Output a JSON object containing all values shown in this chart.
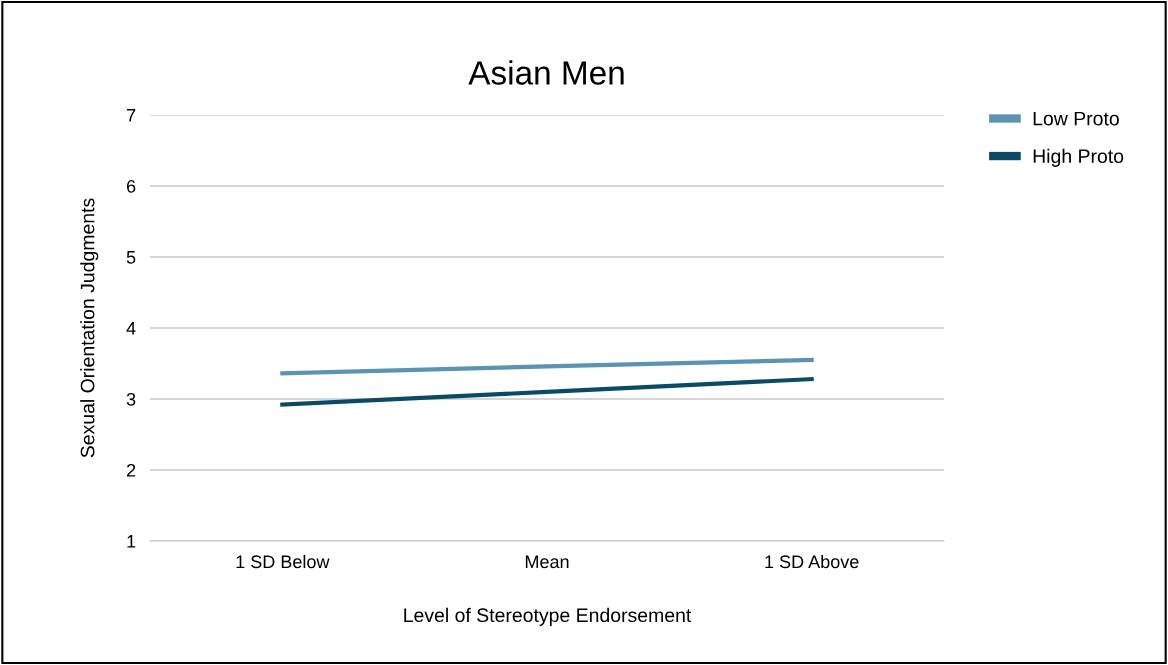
{
  "chart_data": {
    "type": "line",
    "title": "Asian Men",
    "xlabel": "Level of Stereotype Endorsement",
    "ylabel": "Sexual Orientation Judgments",
    "categories": [
      "1 SD Below",
      "Mean",
      "1 SD Above"
    ],
    "series": [
      {
        "name": "Low Proto",
        "color": "#5b93b2",
        "values": [
          3.36,
          3.46,
          3.55
        ]
      },
      {
        "name": "High Proto",
        "color": "#0a4a66",
        "values": [
          2.92,
          3.1,
          3.28
        ]
      }
    ],
    "ylim": [
      1,
      7
    ],
    "yticks": [
      1,
      2,
      3,
      4,
      5,
      6,
      7
    ],
    "grid": "y",
    "legend": "top right",
    "marker": "none",
    "line_style": "solid"
  }
}
